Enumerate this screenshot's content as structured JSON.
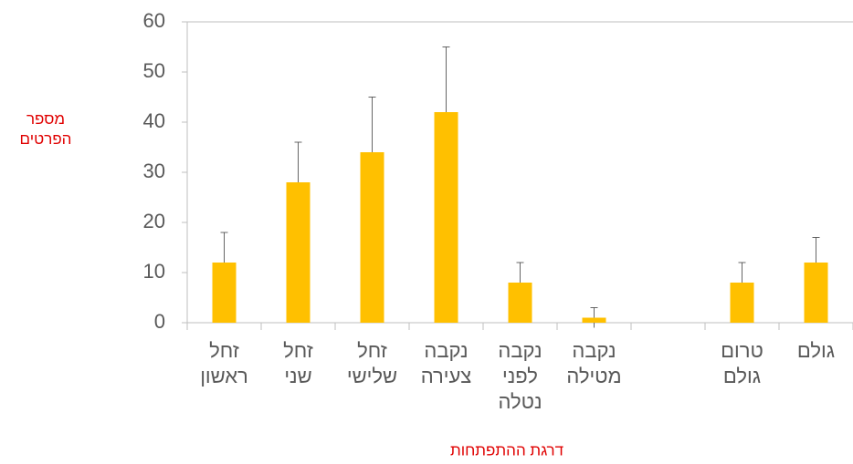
{
  "chart_data": {
    "type": "bar",
    "y_label": "מספר הפרטים",
    "x_label": "דרגת ההתפתחות",
    "categories": [
      "זחל ראשון",
      "זחל שני",
      "זחל שלישי",
      "נקבה צעירה",
      "נקבה לפני נטלה",
      "נקבה מטילה",
      null,
      "טרום גולם",
      "גולם"
    ],
    "values": [
      12,
      28,
      34,
      42,
      8,
      1,
      null,
      8,
      12
    ],
    "errors": [
      6,
      8,
      11,
      13,
      4,
      2,
      null,
      4,
      5
    ],
    "color": "#ffc000",
    "ylim": [
      0,
      60
    ],
    "yticks": [
      0,
      10,
      20,
      30,
      40,
      50,
      60
    ],
    "grid": false
  }
}
